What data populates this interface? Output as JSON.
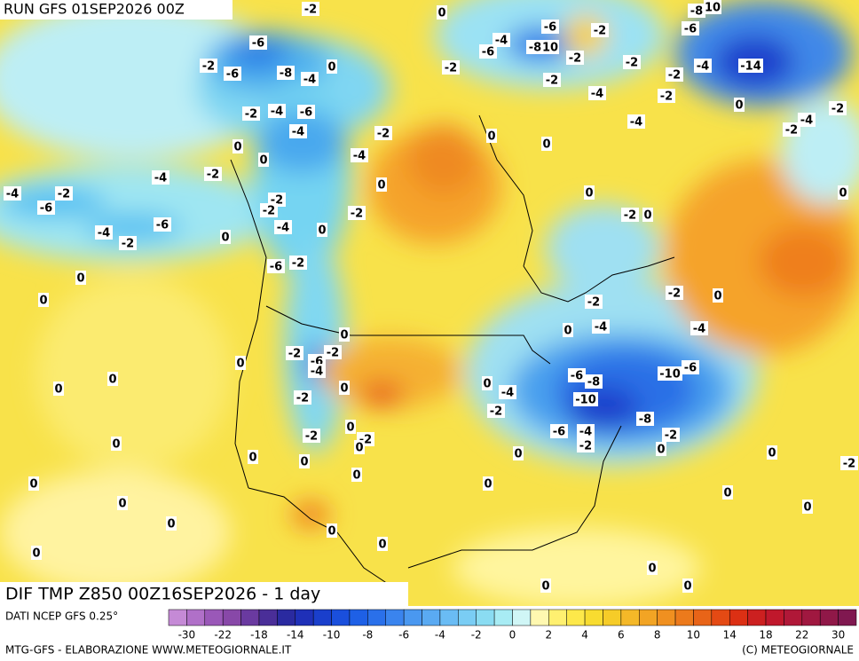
{
  "header": {
    "run": "RUN GFS 01SEP2026 00Z"
  },
  "footer": {
    "title": "DIF TMP Z850 00Z16SEP2026 - 1 day",
    "source": "DATI NCEP GFS 0.25°",
    "credit": "MTG-GFS - ELABORAZIONE WWW.METEOGIORNALE.IT",
    "copyright": "(C) METEOGIORNALE"
  },
  "colorbar": {
    "labels": [
      -30,
      -22,
      -18,
      -14,
      -10,
      -8,
      -6,
      -4,
      -2,
      0,
      2,
      4,
      6,
      8,
      10,
      14,
      18,
      22,
      30
    ]
  },
  "contour_labels": [
    -2,
    0,
    -8,
    10,
    -6,
    -6,
    -2,
    -4,
    -6,
    -8,
    10,
    -2,
    -6,
    -8,
    -4,
    -2,
    -6,
    0,
    -2,
    -2,
    -2,
    -4,
    -14,
    -2,
    -4,
    -2,
    0,
    -4,
    -4,
    -2,
    -2,
    -2,
    -4,
    -6,
    -4,
    -2,
    0,
    0,
    0,
    0,
    -4,
    -4,
    -2,
    0,
    0,
    -4,
    -2,
    -6,
    -2,
    -2,
    -2,
    -2,
    0,
    0,
    -4,
    -2,
    -6,
    -4,
    0,
    0,
    -6,
    -2,
    0,
    -2,
    0,
    -2,
    0,
    -4,
    -4,
    0,
    0,
    -2,
    -6,
    -2,
    -4,
    0,
    0,
    -6,
    -8,
    -10,
    -6,
    -4,
    0,
    0,
    0,
    -10,
    -2,
    -2,
    -8,
    -6,
    -4,
    -2,
    -2,
    0,
    -2,
    -2,
    0,
    0,
    0,
    0,
    0,
    0,
    0,
    -2,
    0,
    0,
    0,
    0,
    0,
    0,
    0,
    0,
    0,
    0,
    0,
    0,
    0
  ]
}
